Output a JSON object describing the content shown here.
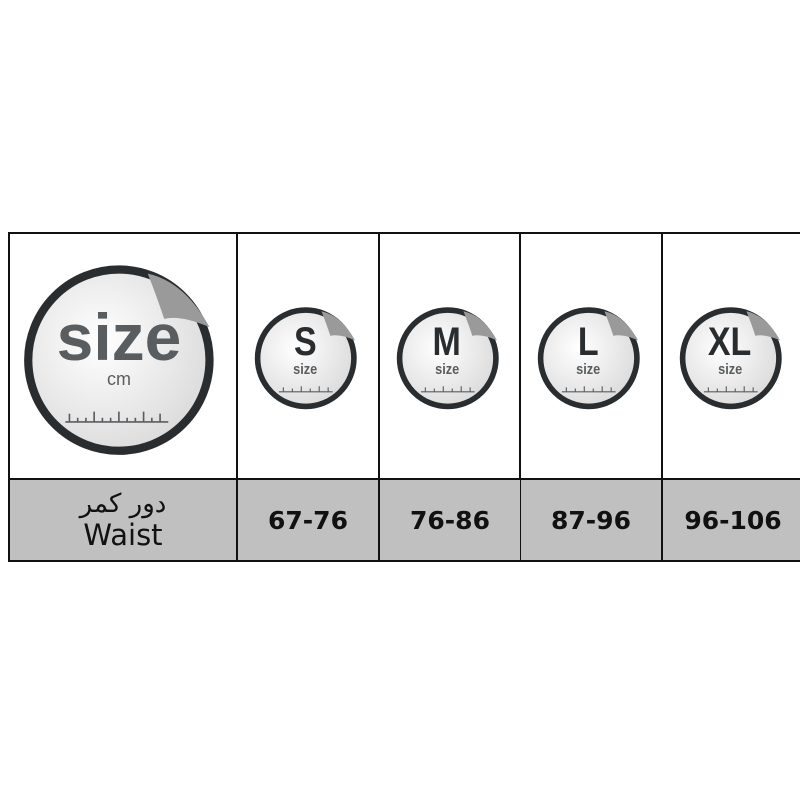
{
  "header_cell": {
    "sticker_word": "size",
    "sticker_unit": "cm",
    "label_fa": "دور کمر",
    "label_en": "Waist"
  },
  "sizes": [
    {
      "letter": "S",
      "sub": "size",
      "waist": "67-76"
    },
    {
      "letter": "M",
      "sub": "size",
      "waist": "76-86"
    },
    {
      "letter": "L",
      "sub": "size",
      "waist": "87-96"
    },
    {
      "letter": "XL",
      "sub": "size",
      "waist": "96-106"
    }
  ],
  "colors": {
    "ring": "#2a2d30",
    "text": "#5a5d60",
    "row_fill": "#c0c0c0"
  }
}
